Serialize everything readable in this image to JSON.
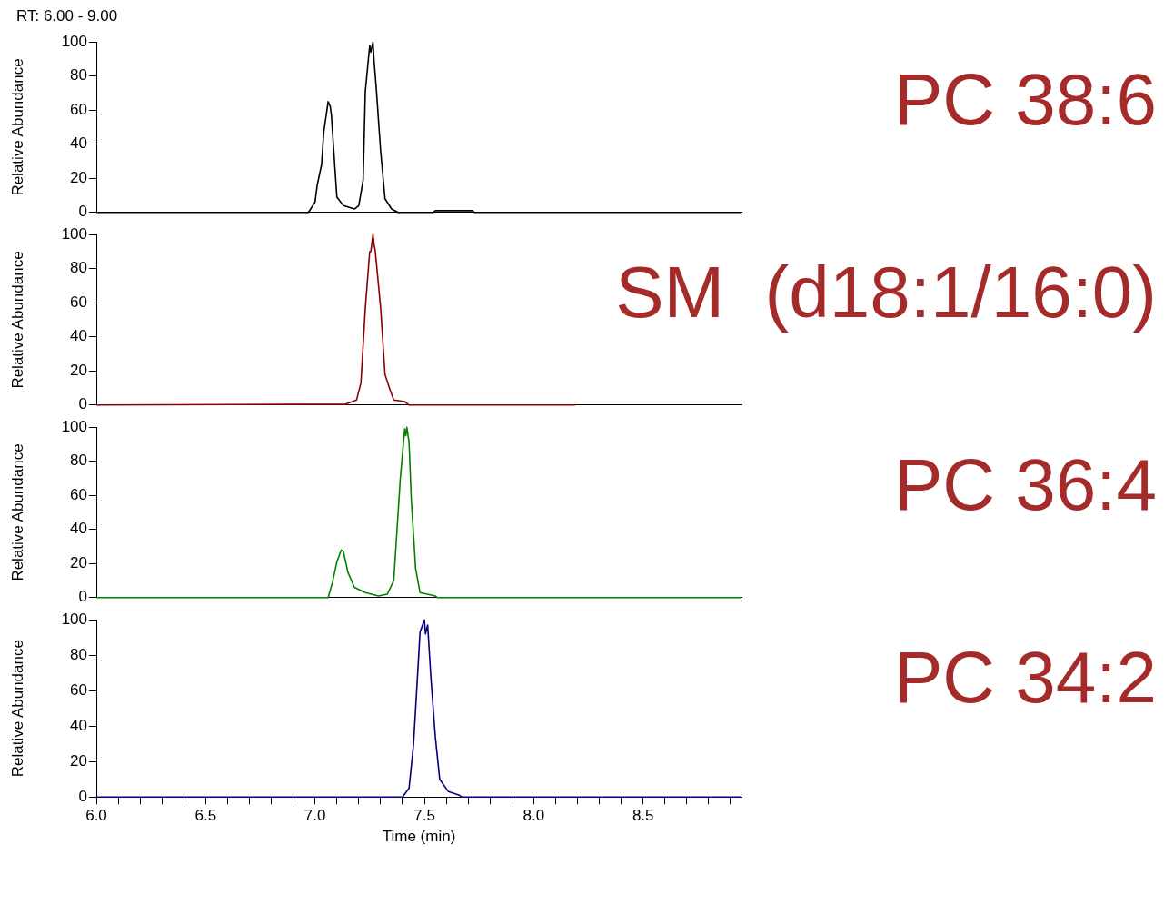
{
  "chart_data": [
    {
      "type": "line",
      "ylabel": "Relative Abundance",
      "annotations": [
        "RT: 6.00 - 9.00",
        "PC 38:6"
      ],
      "xlim": [
        6,
        8.95
      ],
      "ylim": [
        0,
        100
      ],
      "yticks": [
        0,
        20,
        40,
        60,
        80,
        100
      ],
      "tick_labels": "y",
      "grid": false,
      "legend": false,
      "marker": "none",
      "series": [
        {
          "color": "#000000",
          "x": [
            6,
            6.97,
            7.0,
            7.01,
            7.03,
            7.04,
            7.06,
            7.07,
            7.075,
            7.09,
            7.1,
            7.13,
            7.18,
            7.2,
            7.22,
            7.23,
            7.25,
            7.255,
            7.265,
            7.27,
            7.28,
            7.3,
            7.32,
            7.35,
            7.38,
            7.54,
            7.55,
            7.72,
            7.73,
            8.95
          ],
          "values": [
            0,
            0,
            6,
            16,
            28,
            47,
            65,
            62,
            57,
            28,
            9,
            4,
            2,
            4,
            19,
            71,
            98,
            94,
            100,
            89,
            73,
            36,
            8,
            2,
            0,
            0,
            1,
            1,
            0,
            0
          ]
        }
      ]
    },
    {
      "type": "line",
      "ylabel": "Relative Abundance",
      "annotations": [
        "SM  (d18:1/16:0)"
      ],
      "xlim": [
        6,
        8.95
      ],
      "ylim": [
        0,
        100
      ],
      "yticks": [
        0,
        20,
        40,
        60,
        80,
        100
      ],
      "tick_labels": "y",
      "grid": false,
      "legend": false,
      "marker": "none",
      "series": [
        {
          "color": "#8b0000",
          "x": [
            6,
            7.14,
            7.19,
            7.21,
            7.23,
            7.25,
            7.255,
            7.265,
            7.27,
            7.275,
            7.3,
            7.32,
            7.34,
            7.36,
            7.41,
            7.43,
            8.19
          ],
          "values": [
            0,
            0.5,
            3,
            13,
            57,
            90,
            90,
            100,
            94,
            91,
            57,
            18,
            10,
            3,
            2,
            0,
            0
          ]
        }
      ]
    },
    {
      "type": "line",
      "ylabel": "Relative Abundance",
      "annotations": [
        "PC 36:4"
      ],
      "xlim": [
        6,
        8.95
      ],
      "ylim": [
        0,
        100
      ],
      "yticks": [
        0,
        20,
        40,
        60,
        80,
        100
      ],
      "tick_labels": "y",
      "grid": false,
      "legend": false,
      "marker": "none",
      "series": [
        {
          "color": "#008000",
          "x": [
            6,
            7.06,
            7.08,
            7.1,
            7.12,
            7.13,
            7.15,
            7.18,
            7.23,
            7.29,
            7.33,
            7.36,
            7.39,
            7.41,
            7.415,
            7.42,
            7.43,
            7.44,
            7.46,
            7.48,
            7.55,
            7.56,
            8.95
          ],
          "values": [
            0,
            0,
            9,
            21,
            28,
            27,
            15,
            6,
            3,
            1,
            2,
            10,
            70,
            99,
            95,
            100,
            91,
            58,
            17,
            3,
            1,
            0,
            0
          ]
        }
      ]
    },
    {
      "type": "line",
      "ylabel": "Relative Abundance",
      "xlabel": "Time (min)",
      "annotations": [
        "PC 34:2"
      ],
      "xlim": [
        6,
        8.95
      ],
      "ylim": [
        0,
        100
      ],
      "yticks": [
        0,
        20,
        40,
        60,
        80,
        100
      ],
      "grid": false,
      "legend": false,
      "marker": "none",
      "xticks": [
        {
          "value": 6,
          "label": "6.0"
        },
        {
          "value": 6.1,
          "label": null
        },
        {
          "value": 6.2,
          "label": null
        },
        {
          "value": 6.3,
          "label": null
        },
        {
          "value": 6.4,
          "label": null
        },
        {
          "value": 6.5,
          "label": "6.5"
        },
        {
          "value": 6.6,
          "label": null
        },
        {
          "value": 6.7,
          "label": null
        },
        {
          "value": 6.8,
          "label": null
        },
        {
          "value": 6.9,
          "label": null
        },
        {
          "value": 7,
          "label": "7.0"
        },
        {
          "value": 7.1,
          "label": null
        },
        {
          "value": 7.2,
          "label": null
        },
        {
          "value": 7.3,
          "label": null
        },
        {
          "value": 7.4,
          "label": null
        },
        {
          "value": 7.5,
          "label": "7.5"
        },
        {
          "value": 7.6,
          "label": null
        },
        {
          "value": 7.7,
          "label": null
        },
        {
          "value": 7.8,
          "label": null
        },
        {
          "value": 7.9,
          "label": null
        },
        {
          "value": 8,
          "label": "8.0"
        },
        {
          "value": 8.1,
          "label": null
        },
        {
          "value": 8.2,
          "label": null
        },
        {
          "value": 8.3,
          "label": null
        },
        {
          "value": 8.4,
          "label": null
        },
        {
          "value": 8.5,
          "label": "8.5"
        },
        {
          "value": 8.6,
          "label": null
        },
        {
          "value": 8.7,
          "label": null
        },
        {
          "value": 8.8,
          "label": null
        },
        {
          "value": 8.9,
          "label": null
        }
      ],
      "series": [
        {
          "color": "#000080",
          "x": [
            6,
            7.4,
            7.43,
            7.45,
            7.47,
            7.48,
            7.5,
            7.505,
            7.515,
            7.53,
            7.55,
            7.57,
            7.61,
            7.66,
            7.67,
            8.95
          ],
          "values": [
            0,
            0,
            5,
            29,
            71,
            93,
            100,
            92,
            97,
            67,
            34,
            10,
            3,
            1,
            0,
            0
          ]
        }
      ]
    }
  ]
}
